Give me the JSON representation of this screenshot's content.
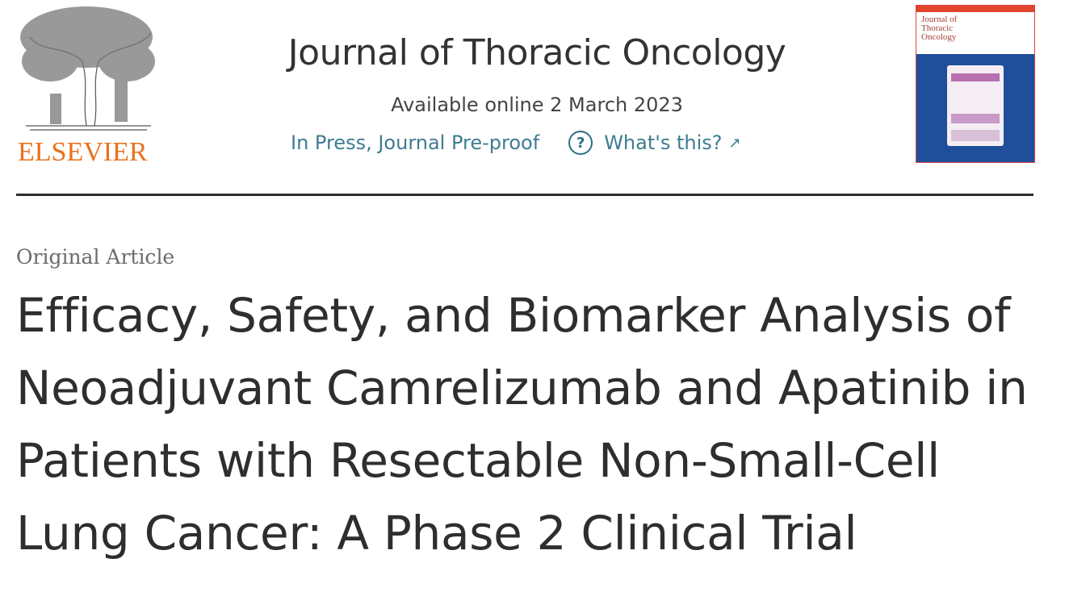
{
  "publisher": {
    "logo_text": "ELSEVIER",
    "brand_color": "#e9711c"
  },
  "journal": {
    "title": "Journal of Thoracic Oncology",
    "available_online": "Available online 2 March 2023",
    "status": "In Press, Journal Pre-proof",
    "help_link": "What's this?",
    "link_color": "#3e7c91",
    "cover_title": "Journal of Thoracic Oncology"
  },
  "article": {
    "type": "Original Article",
    "title": "Efficacy, Safety, and Biomarker Analysis of Neoadjuvant Camrelizumab and Apatinib in Patients with Resectable Non-Small-Cell Lung Cancer: A Phase 2 Clinical Trial"
  }
}
